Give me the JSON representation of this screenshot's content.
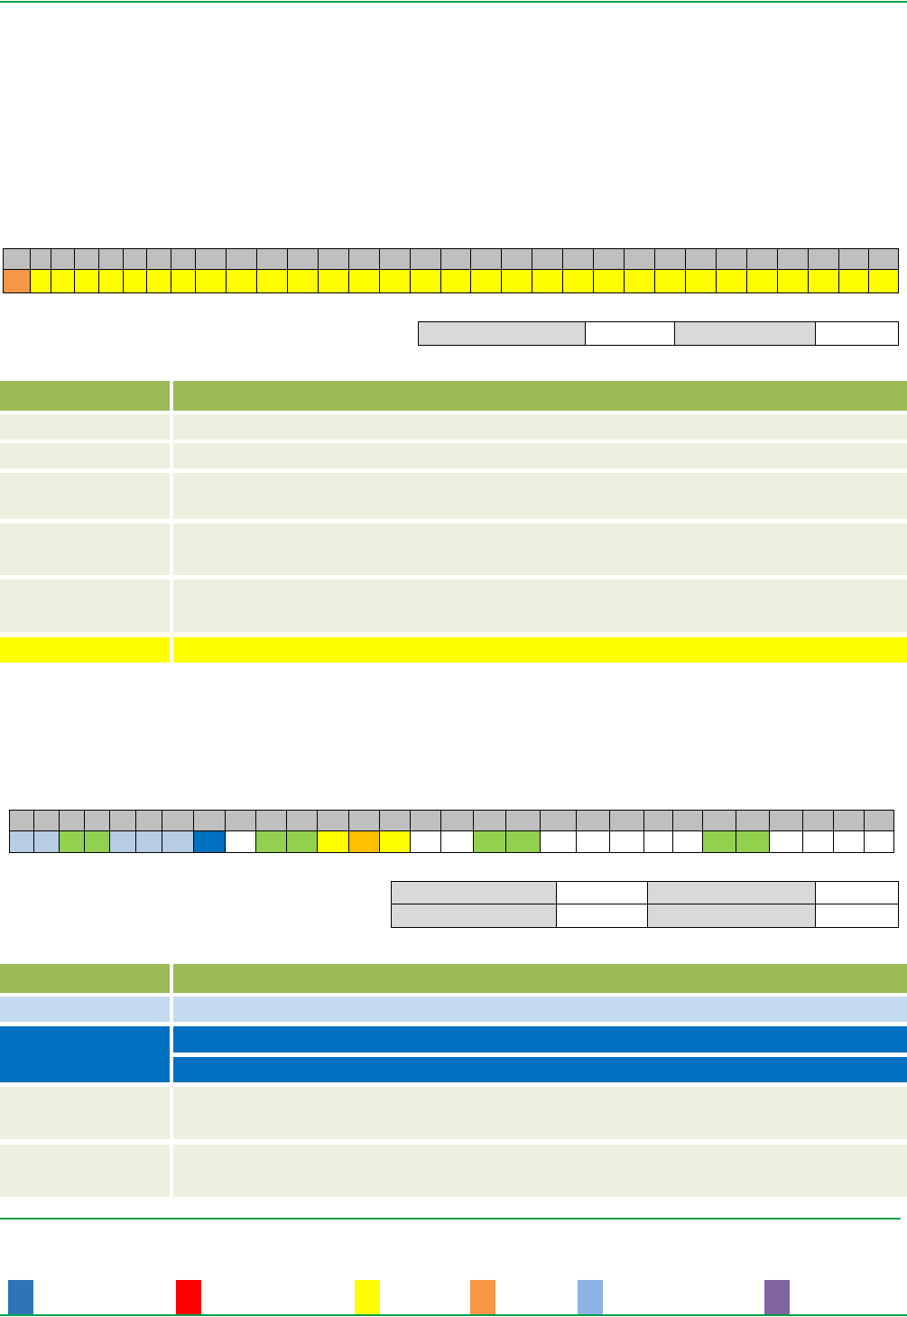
{
  "calendars": [
    {
      "cells": [
        "#f79646",
        "#ffff00",
        "#ffff00",
        "#ffff00",
        "#ffff00",
        "#ffff00",
        "#ffff00",
        "#ffff00",
        "#ffff00",
        "#ffff00",
        "#ffff00",
        "#ffff00",
        "#ffff00",
        "#ffff00",
        "#ffff00",
        "#ffff00",
        "#ffff00",
        "#ffff00",
        "#ffff00",
        "#ffff00",
        "#ffff00",
        "#ffff00",
        "#ffff00",
        "#ffff00",
        "#ffff00",
        "#ffff00",
        "#ffff00",
        "#ffff00",
        "#ffff00",
        "#ffff00",
        "#ffff00"
      ]
    },
    {
      "cells": [
        "#b8cce4",
        "#b8cce4",
        "#92d050",
        "#92d050",
        "#b8cce4",
        "#b8cce4",
        "#b8cce4",
        "#0070c0",
        "#ffffff",
        "#92d050",
        "#92d050",
        "#ffff00",
        "#ffc000",
        "#ffff00",
        "#ffffff",
        "#ffffff",
        "#92d050",
        "#92d050",
        "#ffffff",
        "#ffffff",
        "#ffffff",
        "#ffffff",
        "#ffffff",
        "#92d050",
        "#92d050",
        "#ffffff",
        "#ffffff",
        "#ffffff",
        "#ffffff"
      ]
    }
  ],
  "legend": [
    {
      "color": "#2e75b6"
    },
    {
      "color": "#ff0000"
    },
    {
      "color": "#ffff00"
    },
    {
      "color": "#f79646"
    },
    {
      "color": "#8db3e2"
    },
    {
      "color": "#8064a2"
    }
  ]
}
